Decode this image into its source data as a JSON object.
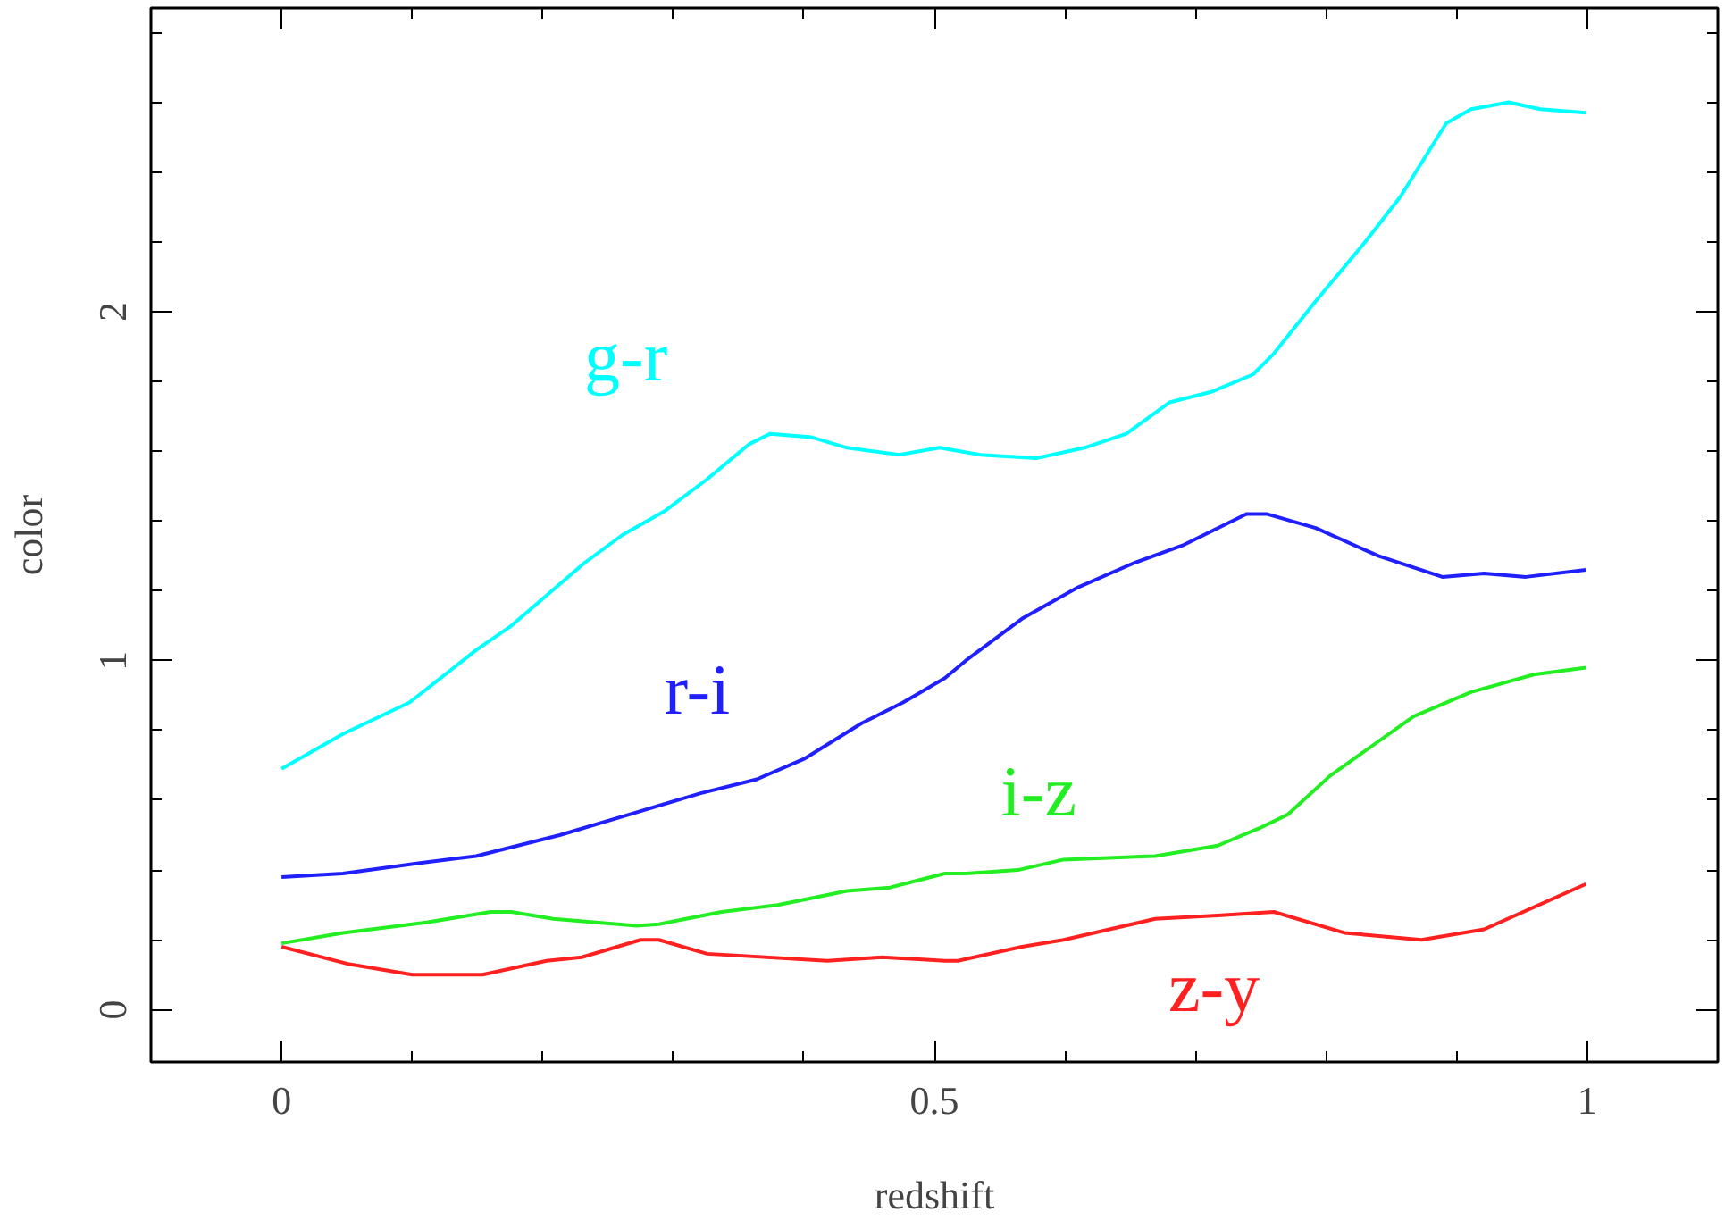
{
  "chart_data": {
    "type": "line",
    "xlabel": "redshift",
    "ylabel": "color",
    "xlim": [
      -0.1,
      1.1
    ],
    "ylim": [
      -0.15,
      2.87
    ],
    "xticks": [
      0,
      0.5,
      1,
      {
        "value": 0.1,
        "label": null
      },
      {
        "value": 0.2,
        "label": null
      },
      {
        "value": 0.3,
        "label": null
      },
      {
        "value": 0.4,
        "label": null
      },
      {
        "value": 0.6,
        "label": null
      },
      {
        "value": 0.7,
        "label": null
      },
      {
        "value": 0.8,
        "label": null
      },
      {
        "value": 0.9,
        "label": null
      }
    ],
    "yticks": [
      0,
      1,
      2,
      {
        "value": 0.2,
        "label": null
      },
      {
        "value": 0.4,
        "label": null
      },
      {
        "value": 0.6,
        "label": null
      },
      {
        "value": 0.8,
        "label": null
      },
      {
        "value": 1.2,
        "label": null
      },
      {
        "value": 1.4,
        "label": null
      },
      {
        "value": 1.6,
        "label": null
      },
      {
        "value": 1.8,
        "label": null
      },
      {
        "value": 2.2,
        "label": null
      },
      {
        "value": 2.4,
        "label": null
      },
      {
        "value": 2.6,
        "label": null
      },
      {
        "value": 2.8,
        "label": null
      }
    ],
    "grid": false,
    "marker": "none",
    "line_style": "solid",
    "series": [
      {
        "name": "g-r",
        "color": "#00ffff",
        "x": [
          0,
          0.047,
          0.098,
          0.149,
          0.176,
          0.232,
          0.261,
          0.294,
          0.326,
          0.358,
          0.374,
          0.406,
          0.433,
          0.473,
          0.504,
          0.535,
          0.578,
          0.615,
          0.647,
          0.68,
          0.712,
          0.744,
          0.76,
          0.792,
          0.83,
          0.857,
          0.892,
          0.911,
          0.94,
          0.964,
          0.999
        ],
        "values": [
          0.69,
          0.79,
          0.88,
          1.03,
          1.1,
          1.28,
          1.36,
          1.43,
          1.52,
          1.62,
          1.65,
          1.64,
          1.61,
          1.59,
          1.61,
          1.59,
          1.58,
          1.61,
          1.65,
          1.74,
          1.77,
          1.82,
          1.88,
          2.03,
          2.2,
          2.33,
          2.54,
          2.58,
          2.6,
          2.58,
          2.57
        ]
      },
      {
        "name": "r-i",
        "color": "#2020ff",
        "x": [
          0,
          0.047,
          0.106,
          0.149,
          0.213,
          0.267,
          0.321,
          0.364,
          0.401,
          0.444,
          0.476,
          0.508,
          0.524,
          0.567,
          0.61,
          0.653,
          0.69,
          0.739,
          0.755,
          0.792,
          0.84,
          0.889,
          0.921,
          0.953,
          0.999
        ],
        "values": [
          0.38,
          0.39,
          0.42,
          0.44,
          0.5,
          0.56,
          0.62,
          0.66,
          0.72,
          0.82,
          0.88,
          0.95,
          1.0,
          1.12,
          1.21,
          1.28,
          1.33,
          1.42,
          1.42,
          1.38,
          1.3,
          1.24,
          1.25,
          1.24,
          1.26
        ]
      },
      {
        "name": "i-z",
        "color": "#22ee22",
        "x": [
          0,
          0.047,
          0.111,
          0.16,
          0.176,
          0.208,
          0.272,
          0.289,
          0.337,
          0.38,
          0.433,
          0.466,
          0.508,
          0.524,
          0.564,
          0.599,
          0.669,
          0.717,
          0.749,
          0.771,
          0.803,
          0.867,
          0.911,
          0.959,
          0.999
        ],
        "values": [
          0.19,
          0.22,
          0.25,
          0.28,
          0.28,
          0.26,
          0.24,
          0.245,
          0.28,
          0.3,
          0.34,
          0.35,
          0.39,
          0.39,
          0.4,
          0.43,
          0.44,
          0.47,
          0.52,
          0.56,
          0.67,
          0.84,
          0.91,
          0.96,
          0.98
        ]
      },
      {
        "name": "z-y",
        "color": "#ff2020",
        "x": [
          0,
          0.052,
          0.1,
          0.154,
          0.203,
          0.23,
          0.275,
          0.289,
          0.326,
          0.418,
          0.46,
          0.508,
          0.518,
          0.567,
          0.599,
          0.669,
          0.717,
          0.76,
          0.814,
          0.873,
          0.921,
          0.999
        ],
        "values": [
          0.18,
          0.13,
          0.1,
          0.1,
          0.14,
          0.15,
          0.2,
          0.2,
          0.16,
          0.14,
          0.15,
          0.14,
          0.14,
          0.18,
          0.2,
          0.26,
          0.27,
          0.28,
          0.22,
          0.2,
          0.23,
          0.36
        ]
      }
    ]
  }
}
